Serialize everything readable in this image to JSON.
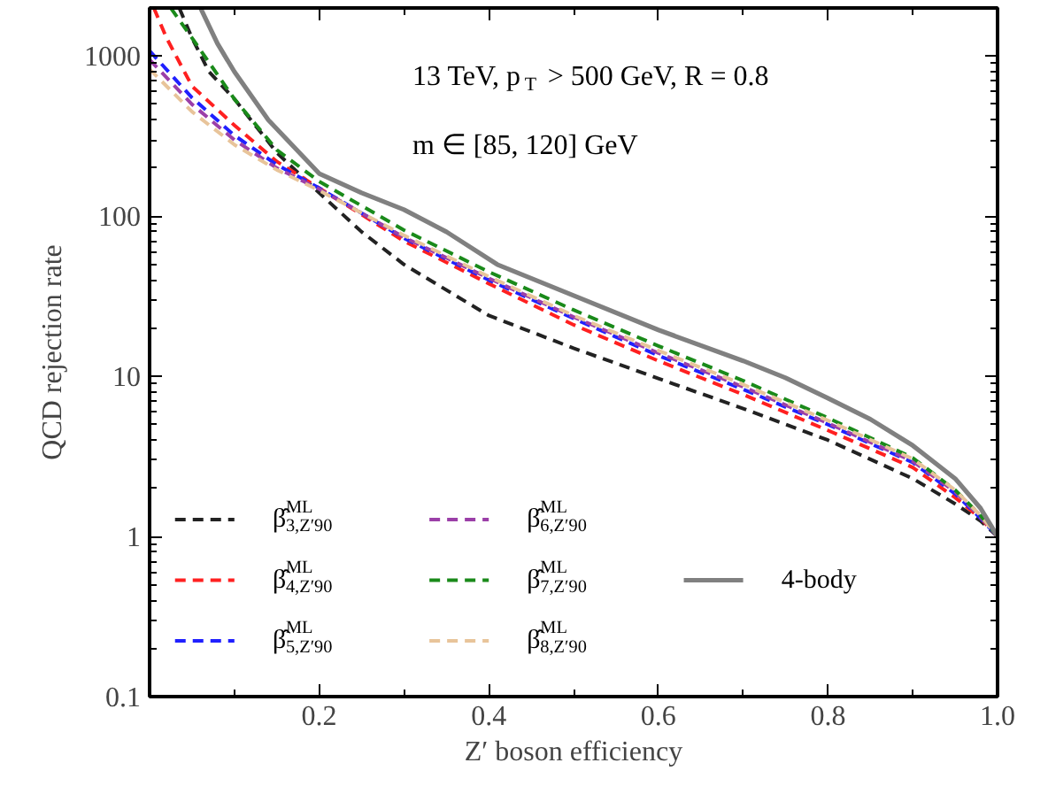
{
  "chart_data": {
    "type": "line",
    "xlabel": "Z′ boson efficiency",
    "ylabel": "QCD rejection rate",
    "annotations": [
      "13 TeV, p$_{T}$ > 500 GeV, R = 0.8",
      "m ∈ [85, 120] GeV"
    ],
    "xlim": [
      0,
      1
    ],
    "ylim": [
      0.1,
      2000
    ],
    "log": true,
    "legend": "bottom left",
    "xticks": [
      0.2,
      0.4,
      0.6,
      0.8,
      {
        "value": 1,
        "label": "1.0"
      }
    ],
    "yticks": [
      0.1,
      1,
      10,
      100,
      1000
    ],
    "series": [
      {
        "name": "β̂$^{ML}$$_{3,Z′90}$",
        "color": "#222222",
        "line_style": "dashed",
        "x": [
          0.035,
          0.05,
          0.07,
          0.1,
          0.15,
          0.2,
          0.25,
          0.3,
          0.4,
          0.5,
          0.6,
          0.7,
          0.8,
          0.9,
          0.95,
          0.98,
          1.0
        ],
        "values": [
          2000,
          1300,
          800,
          540,
          250,
          140,
          80,
          50,
          24,
          15,
          9.7,
          6.3,
          4.0,
          2.3,
          1.6,
          1.25,
          1.0
        ]
      },
      {
        "name": "β̂$^{ML}$$_{4,Z′90}$",
        "color": "#ff2020",
        "line_style": "dashed",
        "x": [
          0.005,
          0.02,
          0.05,
          0.1,
          0.15,
          0.2,
          0.3,
          0.4,
          0.5,
          0.6,
          0.7,
          0.8,
          0.9,
          0.95,
          0.98,
          1.0
        ],
        "values": [
          2000,
          1300,
          650,
          370,
          220,
          150,
          70,
          38,
          21,
          12.5,
          7.7,
          4.6,
          2.7,
          1.75,
          1.3,
          1.0
        ]
      },
      {
        "name": "β̂$^{ML}$$_{5,Z′90}$",
        "color": "#2020ff",
        "line_style": "dashed",
        "x": [
          0.0,
          0.05,
          0.1,
          0.15,
          0.2,
          0.3,
          0.4,
          0.5,
          0.6,
          0.7,
          0.8,
          0.9,
          0.95,
          0.98,
          1.0
        ],
        "values": [
          1080,
          550,
          320,
          210,
          150,
          73,
          40,
          23,
          13.5,
          8.3,
          5.0,
          2.9,
          1.85,
          1.3,
          1.0
        ]
      },
      {
        "name": "β̂$^{ML}$$_{6,Z′90}$",
        "color": "#9b3fa8",
        "line_style": "dashed",
        "x": [
          0.0,
          0.05,
          0.1,
          0.15,
          0.2,
          0.3,
          0.4,
          0.5,
          0.6,
          0.7,
          0.8,
          0.9,
          0.95,
          0.98,
          1.0
        ],
        "values": [
          950,
          500,
          300,
          200,
          148,
          74,
          41,
          23.5,
          14,
          8.6,
          5.1,
          2.95,
          1.9,
          1.32,
          1.0
        ]
      },
      {
        "name": "β̂$^{ML}$$_{7,Z′90}$",
        "color": "#1a8a1a",
        "line_style": "dashed",
        "x": [
          0.025,
          0.05,
          0.1,
          0.15,
          0.2,
          0.3,
          0.4,
          0.5,
          0.6,
          0.7,
          0.8,
          0.9,
          0.95,
          0.98,
          1.0
        ],
        "values": [
          2000,
          1300,
          540,
          260,
          165,
          82,
          45,
          26,
          15.5,
          9.4,
          5.5,
          3.1,
          1.95,
          1.35,
          1.0
        ]
      },
      {
        "name": "β̂$^{ML}$$_{8,Z′90}$",
        "color": "#e8c49a",
        "line_style": "dashed",
        "x": [
          0.0,
          0.05,
          0.1,
          0.15,
          0.2,
          0.3,
          0.4,
          0.5,
          0.6,
          0.7,
          0.8,
          0.9,
          0.95,
          0.98,
          1.0
        ],
        "values": [
          830,
          450,
          280,
          195,
          145,
          76,
          42,
          24,
          14.5,
          8.9,
          5.3,
          3.05,
          1.95,
          1.35,
          1.0
        ]
      },
      {
        "name": "4-body",
        "color": "#808080",
        "line_style": "solid",
        "x": [
          0.06,
          0.08,
          0.1,
          0.14,
          0.2,
          0.25,
          0.3,
          0.35,
          0.41,
          0.5,
          0.6,
          0.7,
          0.75,
          0.8,
          0.85,
          0.9,
          0.95,
          0.98,
          1.0
        ],
        "values": [
          2000,
          1200,
          800,
          400,
          185,
          140,
          110,
          80,
          50,
          32,
          19.5,
          12.5,
          9.8,
          7.3,
          5.4,
          3.7,
          2.3,
          1.5,
          1.0
        ]
      }
    ]
  }
}
